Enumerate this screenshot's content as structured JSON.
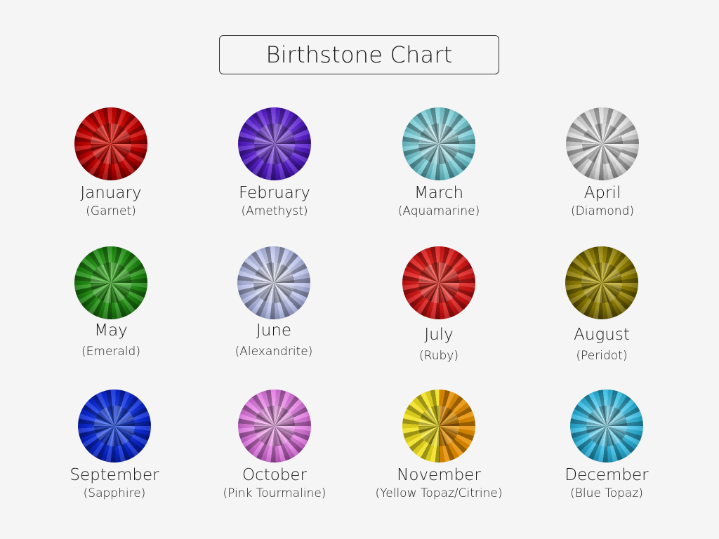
{
  "title": "Birthstone Chart",
  "months": [
    {
      "month": "January",
      "stone": "(Garnet)",
      "colors": [
        "#ff2a1a",
        "#c40000",
        "#3a0000"
      ]
    },
    {
      "month": "February",
      "stone": "(Amethyst)",
      "colors": [
        "#a070f0",
        "#5a20d0",
        "#1a0060"
      ]
    },
    {
      "month": "March",
      "stone": "(Aquamarine)",
      "colors": [
        "#c8f0f4",
        "#7ccdd6",
        "#2a8a96"
      ]
    },
    {
      "month": "April",
      "stone": "(Diamond)",
      "colors": [
        "#ffffff",
        "#d8d8d8",
        "#707070"
      ]
    },
    {
      "month": "May",
      "stone": "(Emerald)",
      "colors": [
        "#5ad040",
        "#1f8a12",
        "#0a3a05"
      ]
    },
    {
      "month": "June",
      "stone": "(Alexandrite)",
      "colors": [
        "#f0f2ff",
        "#b8c0e8",
        "#5a6290"
      ]
    },
    {
      "month": "July",
      "stone": "(Ruby)",
      "colors": [
        "#ff4a3a",
        "#d81818",
        "#7a0000"
      ]
    },
    {
      "month": "August",
      "stone": "(Peridot)",
      "colors": [
        "#d8c020",
        "#8a7a00",
        "#2a2200"
      ]
    },
    {
      "month": "September",
      "stone": "(Sapphire)",
      "colors": [
        "#3a6aff",
        "#0a28d8",
        "#00106a"
      ]
    },
    {
      "month": "October",
      "stone": "(Pink Tourmaline)",
      "colors": [
        "#ffc0f8",
        "#e07ae0",
        "#8a3090"
      ]
    },
    {
      "month": "November",
      "stone": "(Yellow Topaz/Citrine)",
      "colors": [
        "#f0e020",
        "#e89000",
        "#6a4000"
      ]
    },
    {
      "month": "December",
      "stone": "(Blue Topaz)",
      "colors": [
        "#a8f0ff",
        "#30b8e0",
        "#0a6a8a"
      ]
    }
  ]
}
